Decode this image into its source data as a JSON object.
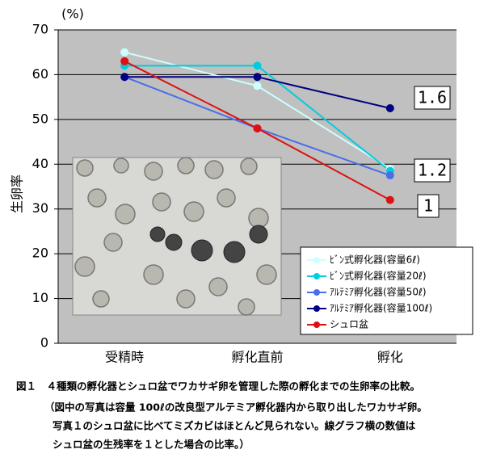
{
  "chart_data": {
    "type": "line",
    "unit": "(%)",
    "y_label": "生卵率",
    "categories": [
      "受精時",
      "孵化直前",
      "孵化"
    ],
    "series": [
      {
        "name": "ﾋﾞﾝ式孵化器(容量6ℓ)",
        "color": "#ccffff",
        "values": [
          65,
          57.5,
          39
        ]
      },
      {
        "name": "ﾋﾞﾝ式孵化器(容量20ℓ)",
        "color": "#00ccdd",
        "values": [
          62,
          62,
          38.5
        ]
      },
      {
        "name": "ｱﾙﾃﾐｱ孵化器(容量50ℓ)",
        "color": "#4a6ee8",
        "values": [
          59.5,
          48,
          37.5
        ]
      },
      {
        "name": "ｱﾙﾃﾐｱ孵化器(容量100ℓ)",
        "color": "#000080",
        "values": [
          59.5,
          59.5,
          52.5
        ]
      },
      {
        "name": "シュロ盆",
        "color": "#dd1111",
        "values": [
          63,
          48,
          32
        ]
      }
    ],
    "ylim": [
      0,
      70
    ],
    "yticks": [
      0,
      10,
      20,
      30,
      40,
      50,
      60,
      70
    ],
    "grid": true,
    "legend": "lower right",
    "annotations": [
      "1.6",
      "1.2",
      "1"
    ],
    "caption": [
      "図１　４種類の孵化器とシュロ盆でワカサギ卵を管理した際の孵化までの生卵率の比較。",
      "（図中の写真は容量 100ℓの改良型アルテミア孵化器内から取り出したワカサギ卵。",
      "写真１のシュロ盆に比べてミズカビはほとんど見られない。線グラフ横の数値は",
      "シュロ盆の生残率を１とした場合の比率。）"
    ]
  }
}
